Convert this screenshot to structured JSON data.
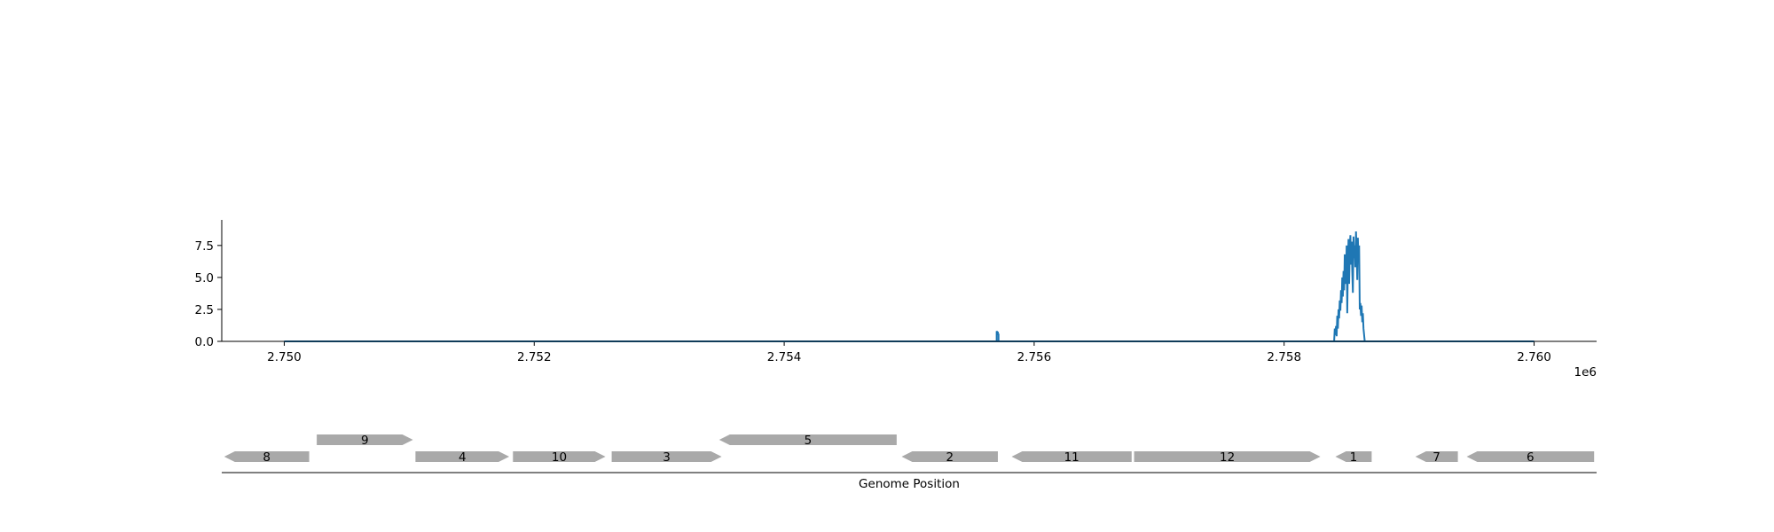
{
  "chart_data": [
    {
      "type": "line",
      "title": "",
      "xlabel": "",
      "ylabel": "",
      "x_offset_label": "1e6",
      "xlim": [
        2749500,
        2760500
      ],
      "ylim": [
        0,
        9.5
      ],
      "x_ticks": [
        2750000,
        2752000,
        2754000,
        2756000,
        2758000,
        2760000
      ],
      "x_tick_labels": [
        "2.750",
        "2.752",
        "2.754",
        "2.756",
        "2.758",
        "2.760"
      ],
      "y_ticks": [
        0.0,
        2.5,
        5.0,
        7.5
      ],
      "y_tick_labels": [
        "0.0",
        "2.5",
        "5.0",
        "7.5"
      ],
      "color": "#1f77b4",
      "grid": false,
      "baseline_range": [
        2750000,
        2760000
      ],
      "series": [
        {
          "x": [
            2750000,
            2755700,
            2755700,
            2755705,
            2755705,
            2755710,
            2755710,
            2755715,
            2755715,
            2758400,
            2758405,
            2758410,
            2758415,
            2758420,
            2758425,
            2758430,
            2758435,
            2758440,
            2758445,
            2758450,
            2758455,
            2758460,
            2758465,
            2758470,
            2758475,
            2758480,
            2758485,
            2758490,
            2758495,
            2758500,
            2758505,
            2758510,
            2758515,
            2758520,
            2758525,
            2758530,
            2758535,
            2758540,
            2758545,
            2758550,
            2758555,
            2758560,
            2758565,
            2758570,
            2758575,
            2758580,
            2758585,
            2758590,
            2758595,
            2758600,
            2758605,
            2758610,
            2758615,
            2758620,
            2758625,
            2758630,
            2758635,
            2758640,
            2758645,
            2758650,
            2758655,
            2758660,
            2758665,
            2758670,
            2758680,
            2760000
          ],
          "y": [
            0,
            0,
            0.8,
            0.7,
            0.6,
            0.75,
            0.5,
            0.6,
            0,
            0,
            1.0,
            0.5,
            1.2,
            0.4,
            2.0,
            1.0,
            2.5,
            1.8,
            3.2,
            2.4,
            4.0,
            3.0,
            5.0,
            3.5,
            5.5,
            4.0,
            6.8,
            5.0,
            4.5,
            7.5,
            2.2,
            6.0,
            8.0,
            4.5,
            7.0,
            8.3,
            6.0,
            7.8,
            5.5,
            3.8,
            8.2,
            6.5,
            7.5,
            5.8,
            8.6,
            7.0,
            4.8,
            8.1,
            6.2,
            7.5,
            2.5,
            3.0,
            2.0,
            2.8,
            1.5,
            2.2,
            1.0,
            0.5,
            0,
            0,
            0,
            0,
            0,
            0,
            0,
            0
          ]
        }
      ]
    },
    {
      "type": "gene-track",
      "xlabel": "Genome Position",
      "color": "#a9a9a9",
      "genes": [
        {
          "label": "8",
          "start": 2749520,
          "end": 2750200,
          "strand": "-",
          "row": 0
        },
        {
          "label": "9",
          "start": 2750260,
          "end": 2751030,
          "strand": "+",
          "row": 1
        },
        {
          "label": "4",
          "start": 2751050,
          "end": 2751800,
          "strand": "+",
          "row": 0
        },
        {
          "label": "10",
          "start": 2751830,
          "end": 2752570,
          "strand": "+",
          "row": 0
        },
        {
          "label": "3",
          "start": 2752620,
          "end": 2753500,
          "strand": "+",
          "row": 0
        },
        {
          "label": "5",
          "start": 2753480,
          "end": 2754900,
          "strand": "-",
          "row": 1
        },
        {
          "label": "2",
          "start": 2754940,
          "end": 2755710,
          "strand": "-",
          "row": 0
        },
        {
          "label": "11",
          "start": 2755820,
          "end": 2756780,
          "strand": "-",
          "row": 0
        },
        {
          "label": "12",
          "start": 2756800,
          "end": 2758290,
          "strand": "+",
          "row": 0
        },
        {
          "label": "1",
          "start": 2758410,
          "end": 2758700,
          "strand": "-",
          "row": 0
        },
        {
          "label": "7",
          "start": 2759050,
          "end": 2759390,
          "strand": "-",
          "row": 0
        },
        {
          "label": "6",
          "start": 2759460,
          "end": 2760480,
          "strand": "-",
          "row": 0
        }
      ]
    }
  ]
}
